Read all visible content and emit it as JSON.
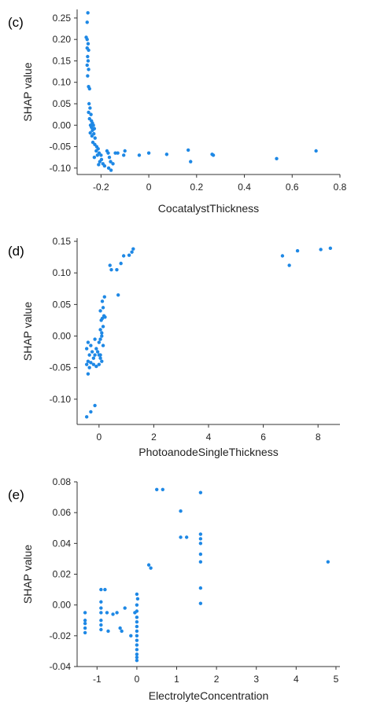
{
  "chart_data": [
    {
      "type": "scatter",
      "panel_label": "(c)",
      "xlabel": "CocatalystThickness",
      "ylabel": "SHAP value",
      "xlim": [
        -0.3,
        0.8
      ],
      "ylim": [
        -0.115,
        0.27
      ],
      "xticks": [
        -0.2,
        0,
        0.2,
        0.4,
        0.6,
        0.8
      ],
      "xtick_labels": [
        "-0.2",
        "0",
        "0.2",
        "0.4",
        "0.6",
        "0.8"
      ],
      "yticks": [
        0.25,
        0.2,
        0.15,
        0.1,
        0.05,
        0,
        -0.05,
        -0.1
      ],
      "ytick_labels": [
        "0.25",
        "0.20",
        "0.15",
        "0.10",
        "0.05",
        "0.00",
        "-0.05",
        "-0.10"
      ],
      "grid": false,
      "color": "#1e88e5",
      "points": [
        [
          -0.255,
          0.262
        ],
        [
          -0.258,
          0.24
        ],
        [
          -0.262,
          0.205
        ],
        [
          -0.258,
          0.2
        ],
        [
          -0.254,
          0.19
        ],
        [
          -0.258,
          0.18
        ],
        [
          -0.252,
          0.175
        ],
        [
          -0.256,
          0.16
        ],
        [
          -0.254,
          0.15
        ],
        [
          -0.258,
          0.14
        ],
        [
          -0.252,
          0.13
        ],
        [
          -0.256,
          0.115
        ],
        [
          -0.252,
          0.09
        ],
        [
          -0.248,
          0.085
        ],
        [
          -0.25,
          0.05
        ],
        [
          -0.246,
          0.04
        ],
        [
          -0.252,
          0.03
        ],
        [
          -0.242,
          0.025
        ],
        [
          -0.248,
          0.015
        ],
        [
          -0.24,
          0.01
        ],
        [
          -0.236,
          0.005
        ],
        [
          -0.244,
          0.0
        ],
        [
          -0.232,
          0.0
        ],
        [
          -0.24,
          -0.005
        ],
        [
          -0.228,
          -0.008
        ],
        [
          -0.236,
          -0.012
        ],
        [
          -0.245,
          -0.018
        ],
        [
          -0.23,
          -0.02
        ],
        [
          -0.238,
          -0.025
        ],
        [
          -0.225,
          -0.03
        ],
        [
          -0.234,
          -0.04
        ],
        [
          -0.226,
          -0.045
        ],
        [
          -0.218,
          -0.05
        ],
        [
          -0.212,
          -0.055
        ],
        [
          -0.22,
          -0.06
        ],
        [
          -0.208,
          -0.065
        ],
        [
          -0.215,
          -0.07
        ],
        [
          -0.2,
          -0.07
        ],
        [
          -0.228,
          -0.075
        ],
        [
          -0.198,
          -0.08
        ],
        [
          -0.205,
          -0.085
        ],
        [
          -0.192,
          -0.09
        ],
        [
          -0.21,
          -0.092
        ],
        [
          -0.185,
          -0.095
        ],
        [
          -0.175,
          -0.06
        ],
        [
          -0.17,
          -0.065
        ],
        [
          -0.165,
          -0.075
        ],
        [
          -0.16,
          -0.085
        ],
        [
          -0.168,
          -0.1
        ],
        [
          -0.158,
          -0.105
        ],
        [
          -0.15,
          -0.09
        ],
        [
          -0.14,
          -0.065
        ],
        [
          -0.13,
          -0.065
        ],
        [
          -0.1,
          -0.06
        ],
        [
          -0.105,
          -0.07
        ],
        [
          -0.04,
          -0.07
        ],
        [
          0.0,
          -0.065
        ],
        [
          0.075,
          -0.068
        ],
        [
          0.165,
          -0.058
        ],
        [
          0.175,
          -0.085
        ],
        [
          0.265,
          -0.068
        ],
        [
          0.27,
          -0.07
        ],
        [
          0.535,
          -0.078
        ],
        [
          0.7,
          -0.06
        ]
      ]
    },
    {
      "type": "scatter",
      "panel_label": "(d)",
      "xlabel": "PhotoanodeSingleThickness",
      "ylabel": "SHAP value",
      "xlim": [
        -0.8,
        8.8
      ],
      "ylim": [
        -0.14,
        0.155
      ],
      "xticks": [
        0,
        2,
        4,
        6,
        8
      ],
      "xtick_labels": [
        "0",
        "2",
        "4",
        "6",
        "8"
      ],
      "yticks": [
        0.15,
        0.1,
        0.05,
        0,
        -0.05,
        -0.1
      ],
      "ytick_labels": [
        "0.15",
        "0.10",
        "0.05",
        "0.00",
        "-0.05",
        "-0.10"
      ],
      "grid": false,
      "color": "#1e88e5",
      "points": [
        [
          -0.45,
          -0.128
        ],
        [
          -0.3,
          -0.12
        ],
        [
          -0.15,
          -0.11
        ],
        [
          -0.4,
          -0.06
        ],
        [
          -0.35,
          -0.05
        ],
        [
          -0.45,
          -0.045
        ],
        [
          -0.4,
          -0.04
        ],
        [
          -0.3,
          -0.042
        ],
        [
          -0.2,
          -0.035
        ],
        [
          -0.15,
          -0.03
        ],
        [
          -0.35,
          -0.03
        ],
        [
          -0.25,
          -0.025
        ],
        [
          -0.45,
          -0.02
        ],
        [
          -0.4,
          -0.01
        ],
        [
          -0.3,
          -0.015
        ],
        [
          -0.1,
          -0.02
        ],
        [
          -0.05,
          -0.025
        ],
        [
          0.0,
          -0.03
        ],
        [
          0.05,
          -0.035
        ],
        [
          0.1,
          -0.04
        ],
        [
          -0.2,
          -0.045
        ],
        [
          -0.1,
          -0.048
        ],
        [
          0.0,
          -0.045
        ],
        [
          0.05,
          -0.03
        ],
        [
          -0.15,
          -0.005
        ],
        [
          0.0,
          -0.01
        ],
        [
          0.05,
          -0.005
        ],
        [
          0.1,
          0.0
        ],
        [
          0.15,
          -0.015
        ],
        [
          0.1,
          0.005
        ],
        [
          0.05,
          0.01
        ],
        [
          0.15,
          0.015
        ],
        [
          0.08,
          0.025
        ],
        [
          0.12,
          0.028
        ],
        [
          0.18,
          0.032
        ],
        [
          0.05,
          0.04
        ],
        [
          0.15,
          0.045
        ],
        [
          0.12,
          0.055
        ],
        [
          0.2,
          0.062
        ],
        [
          0.22,
          0.03
        ],
        [
          0.4,
          0.112
        ],
        [
          0.45,
          0.105
        ],
        [
          0.65,
          0.105
        ],
        [
          0.7,
          0.065
        ],
        [
          0.8,
          0.115
        ],
        [
          0.9,
          0.127
        ],
        [
          1.1,
          0.128
        ],
        [
          1.2,
          0.133
        ],
        [
          1.25,
          0.138
        ],
        [
          6.7,
          0.127
        ],
        [
          6.95,
          0.112
        ],
        [
          7.25,
          0.135
        ],
        [
          8.1,
          0.137
        ],
        [
          8.45,
          0.139
        ]
      ]
    },
    {
      "type": "scatter",
      "panel_label": "(e)",
      "xlabel": "ElectrolyteConcentration",
      "ylabel": "SHAP value",
      "xlim": [
        -1.5,
        5.1
      ],
      "ylim": [
        -0.04,
        0.08
      ],
      "xticks": [
        -1,
        0,
        1,
        2,
        3,
        4,
        5
      ],
      "xtick_labels": [
        "-1",
        "0",
        "1",
        "2",
        "3",
        "4",
        "5"
      ],
      "yticks": [
        0.08,
        0.06,
        0.04,
        0.02,
        0,
        -0.02,
        -0.04
      ],
      "ytick_labels": [
        "0.08",
        "0.06",
        "0.04",
        "0.02",
        "0.00",
        "-0.02",
        "-0.04"
      ],
      "grid": false,
      "color": "#1e88e5",
      "points": [
        [
          -1.3,
          -0.005
        ],
        [
          -1.3,
          -0.01
        ],
        [
          -1.3,
          -0.012
        ],
        [
          -1.3,
          -0.015
        ],
        [
          -1.3,
          -0.018
        ],
        [
          -0.9,
          0.01
        ],
        [
          -0.9,
          0.002
        ],
        [
          -0.9,
          -0.002
        ],
        [
          -0.9,
          -0.005
        ],
        [
          -0.9,
          -0.01
        ],
        [
          -0.9,
          -0.013
        ],
        [
          -0.9,
          -0.016
        ],
        [
          -0.8,
          0.01
        ],
        [
          -0.75,
          -0.005
        ],
        [
          -0.72,
          -0.017
        ],
        [
          -0.6,
          -0.006
        ],
        [
          -0.5,
          -0.005
        ],
        [
          -0.42,
          -0.015
        ],
        [
          -0.38,
          -0.017
        ],
        [
          -0.3,
          -0.002
        ],
        [
          -0.15,
          -0.02
        ],
        [
          -0.05,
          -0.005
        ],
        [
          0.0,
          0.007
        ],
        [
          0.02,
          0.004
        ],
        [
          0.0,
          0.0
        ],
        [
          0.0,
          -0.004
        ],
        [
          0.0,
          -0.008
        ],
        [
          0.0,
          -0.011
        ],
        [
          0.0,
          -0.014
        ],
        [
          0.0,
          -0.017
        ],
        [
          0.0,
          -0.02
        ],
        [
          0.0,
          -0.023
        ],
        [
          0.0,
          -0.026
        ],
        [
          0.0,
          -0.029
        ],
        [
          0.0,
          -0.032
        ],
        [
          0.0,
          -0.034
        ],
        [
          0.0,
          -0.036
        ],
        [
          0.3,
          0.026
        ],
        [
          0.35,
          0.024
        ],
        [
          0.5,
          0.075
        ],
        [
          0.65,
          0.075
        ],
        [
          1.1,
          0.061
        ],
        [
          1.1,
          0.044
        ],
        [
          1.25,
          0.044
        ],
        [
          1.6,
          0.073
        ],
        [
          1.6,
          0.046
        ],
        [
          1.6,
          0.043
        ],
        [
          1.6,
          0.04
        ],
        [
          1.6,
          0.033
        ],
        [
          1.6,
          0.028
        ],
        [
          1.6,
          0.011
        ],
        [
          1.6,
          0.001
        ],
        [
          4.8,
          0.028
        ]
      ]
    }
  ]
}
